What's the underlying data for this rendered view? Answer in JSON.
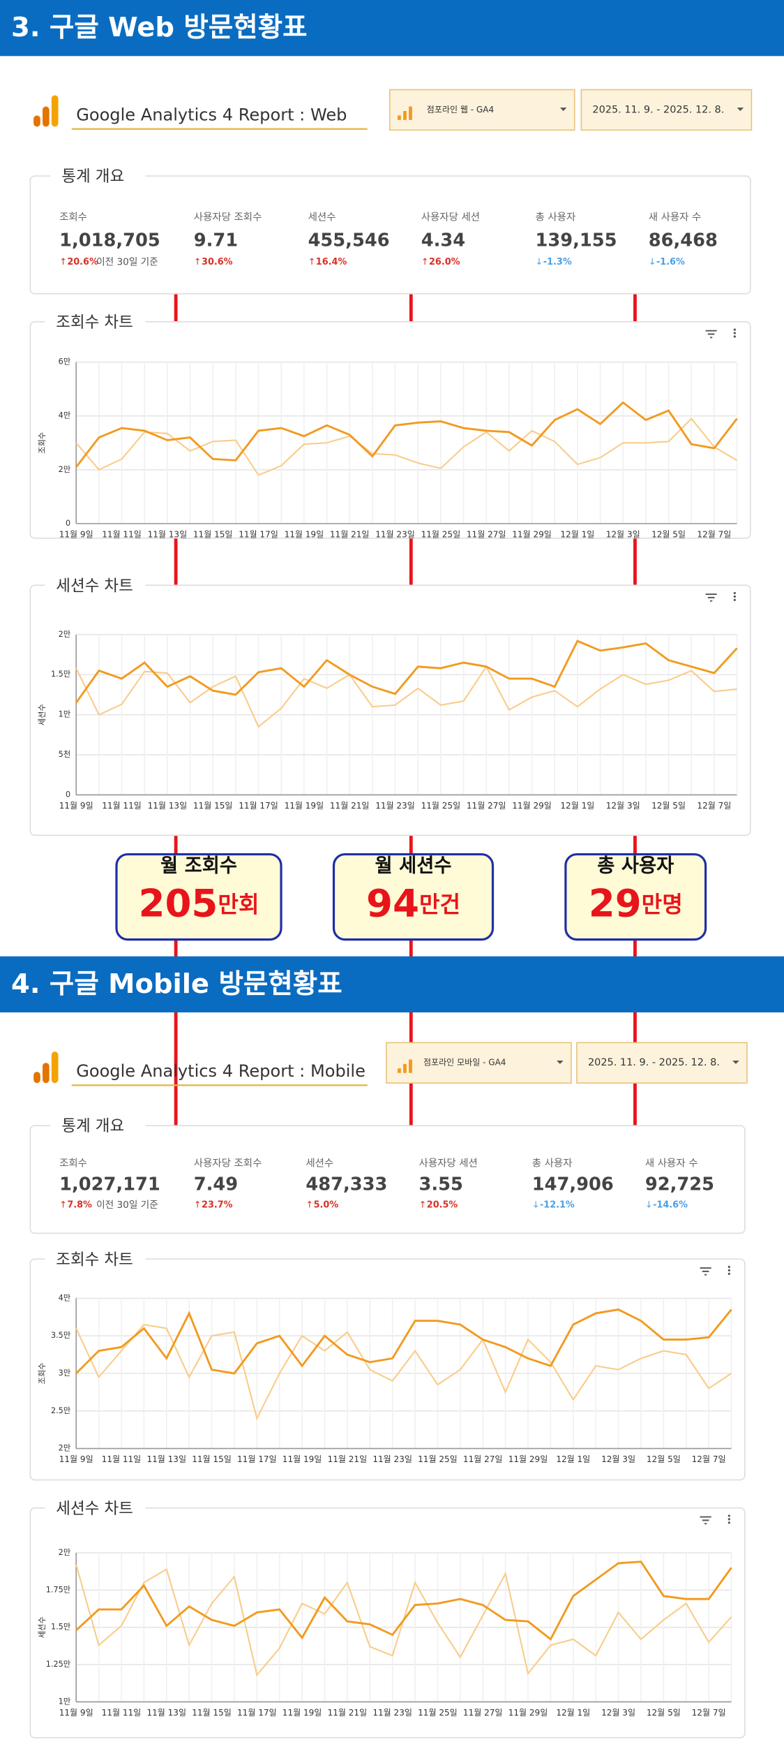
{
  "sections": [
    {
      "header": "3. 구글 Web 방문현황표",
      "ga_title": "Google Analytics 4 Report : Web",
      "property": "점포라인 웹 - GA4",
      "date_range": "2025. 11. 9. - 2025. 12. 8.",
      "overview_title": "통계 개요",
      "stats": [
        {
          "label": "조회수",
          "value": "1,018,705",
          "change": "20.6%",
          "direction": "up",
          "note": "이전 30일 기준"
        },
        {
          "label": "사용자당 조회수",
          "value": "9.71",
          "change": "30.6%",
          "direction": "up"
        },
        {
          "label": "세션수",
          "value": "455,546",
          "change": "16.4%",
          "direction": "up"
        },
        {
          "label": "사용자당 세션",
          "value": "4.34",
          "change": "26.0%",
          "direction": "up"
        },
        {
          "label": "총 사용자",
          "value": "139,155",
          "change": "-1.3%",
          "direction": "down"
        },
        {
          "label": "새 사용자 수",
          "value": "86,468",
          "change": "-1.6%",
          "direction": "down"
        }
      ]
    },
    {
      "header": "4. 구글 Mobile 방문현황표",
      "ga_title": "Google Analytics 4 Report : Mobile",
      "property": "점포라인 모바일 - GA4",
      "date_range": "2025. 11. 9. - 2025. 12. 8.",
      "overview_title": "통계 개요",
      "stats": [
        {
          "label": "조회수",
          "value": "1,027,171",
          "change": "7.8%",
          "direction": "up",
          "note": "이전 30일 기준"
        },
        {
          "label": "사용자당 조회수",
          "value": "7.49",
          "change": "23.7%",
          "direction": "up"
        },
        {
          "label": "세션수",
          "value": "487,333",
          "change": "5.0%",
          "direction": "up"
        },
        {
          "label": "사용자당 세션",
          "value": "3.55",
          "change": "20.5%",
          "direction": "up"
        },
        {
          "label": "총 사용자",
          "value": "147,906",
          "change": "-12.1%",
          "direction": "down"
        },
        {
          "label": "새 사용자 수",
          "value": "92,725",
          "change": "-14.6%",
          "direction": "down"
        }
      ]
    }
  ],
  "callouts": [
    {
      "title": "월 조회수",
      "number": "205",
      "unit": "만회"
    },
    {
      "title": "월 세션수",
      "number": "94",
      "unit": "만건"
    },
    {
      "title": "총 사용자",
      "number": "29",
      "unit": "만명"
    }
  ],
  "chart_data": [
    {
      "type": "line",
      "title": "조회수 차트",
      "y_label": "조회수",
      "grid": true,
      "categories": [
        "11월 9일",
        null,
        "11월 11일",
        null,
        "11월 13일",
        null,
        "11월 15일",
        null,
        "11월 17일",
        null,
        "11월 19일",
        null,
        "11월 21일",
        null,
        "11월 23일",
        null,
        "11월 25일",
        null,
        "11월 27일",
        null,
        "11월 29일",
        null,
        "12월 1일",
        null,
        "12월 3일",
        null,
        "12월 5일",
        null,
        "12월 7일",
        null
      ],
      "ylim": [
        0,
        60000
      ],
      "yticks": [
        0,
        {
          "value": 20000,
          "label": "2만"
        },
        {
          "value": 40000,
          "label": "4만"
        },
        {
          "value": 60000,
          "label": "6만"
        }
      ],
      "series": [
        {
          "color": "#f29a1f",
          "values": [
            21000,
            32000,
            35500,
            34500,
            31000,
            32000,
            24000,
            23500,
            34500,
            35500,
            32500,
            36500,
            33000,
            25000,
            36500,
            37500,
            38000,
            35500,
            34500,
            34000,
            29000,
            38500,
            42500,
            37000,
            45000,
            38500,
            42000,
            29500,
            28000,
            39000
          ]
        },
        {
          "color": "#f9cc8a",
          "values": [
            30000,
            20000,
            24000,
            34000,
            33500,
            27000,
            30500,
            31000,
            18000,
            21500,
            29500,
            30000,
            32500,
            26000,
            25500,
            22500,
            20500,
            28500,
            34000,
            27000,
            34500,
            30500,
            22000,
            24500,
            30000,
            30000,
            30500,
            39000,
            28500,
            23500
          ]
        }
      ]
    },
    {
      "type": "line",
      "title": "세션수 차트",
      "y_label": "세션수",
      "grid": true,
      "categories": [
        "11월 9일",
        null,
        "11월 11일",
        null,
        "11월 13일",
        null,
        "11월 15일",
        null,
        "11월 17일",
        null,
        "11월 19일",
        null,
        "11월 21일",
        null,
        "11월 23일",
        null,
        "11월 25일",
        null,
        "11월 27일",
        null,
        "11월 29일",
        null,
        "12월 1일",
        null,
        "12월 3일",
        null,
        "12월 5일",
        null,
        "12월 7일",
        null
      ],
      "ylim": [
        0,
        20000
      ],
      "yticks": [
        0,
        {
          "value": 5000,
          "label": "5천"
        },
        {
          "value": 10000,
          "label": "1만"
        },
        {
          "value": 15000,
          "label": "1.5만"
        },
        {
          "value": 20000,
          "label": "2만"
        }
      ],
      "series": [
        {
          "color": "#f29a1f",
          "values": [
            11500,
            15500,
            14500,
            16500,
            13500,
            14800,
            13000,
            12500,
            15300,
            15800,
            13500,
            16800,
            15000,
            13500,
            12600,
            16000,
            15800,
            16500,
            16000,
            14500,
            14500,
            13500,
            19200,
            18000,
            18400,
            18900,
            16800,
            16000,
            15200,
            18300
          ]
        },
        {
          "color": "#f9cc8a",
          "values": [
            15800,
            10000,
            11300,
            15400,
            15200,
            11500,
            13500,
            14800,
            8500,
            10800,
            14500,
            13300,
            15000,
            11000,
            11200,
            13300,
            11200,
            11700,
            16000,
            10600,
            12200,
            13000,
            11000,
            13200,
            15000,
            13800,
            14300,
            15500,
            12900,
            13200
          ]
        }
      ]
    },
    {
      "type": "line",
      "title": "조회수 차트",
      "y_label": "조회수",
      "grid": true,
      "categories": [
        "11월 9일",
        null,
        "11월 11일",
        null,
        "11월 13일",
        null,
        "11월 15일",
        null,
        "11월 17일",
        null,
        "11월 19일",
        null,
        "11월 21일",
        null,
        "11월 23일",
        null,
        "11월 25일",
        null,
        "11월 27일",
        null,
        "11월 29일",
        null,
        "12월 1일",
        null,
        "12월 3일",
        null,
        "12월 5일",
        null,
        "12월 7일",
        null
      ],
      "ylim": [
        20000,
        40000
      ],
      "yticks": [
        {
          "value": 20000,
          "label": "2만"
        },
        {
          "value": 25000,
          "label": "2.5만"
        },
        {
          "value": 30000,
          "label": "3만"
        },
        {
          "value": 35000,
          "label": "3.5만"
        },
        {
          "value": 40000,
          "label": "4만"
        }
      ],
      "series": [
        {
          "color": "#f29a1f",
          "values": [
            30000,
            33000,
            33500,
            36000,
            32000,
            38000,
            30500,
            30000,
            34000,
            35000,
            31000,
            35000,
            32500,
            31500,
            32000,
            37000,
            37000,
            36500,
            34500,
            33500,
            32000,
            31000,
            36500,
            38000,
            38500,
            37000,
            34500,
            34500,
            34800,
            38500
          ]
        },
        {
          "color": "#f9cc8a",
          "values": [
            36000,
            29500,
            33000,
            36500,
            36000,
            29500,
            35000,
            35500,
            24000,
            30000,
            35000,
            33000,
            35500,
            30500,
            29000,
            33000,
            28500,
            30500,
            34500,
            27500,
            34500,
            31500,
            26500,
            31000,
            30500,
            32000,
            33000,
            32500,
            28000,
            30000
          ]
        }
      ]
    },
    {
      "type": "line",
      "title": "세션수 차트",
      "y_label": "세션수",
      "grid": true,
      "categories": [
        "11월 9일",
        null,
        "11월 11일",
        null,
        "11월 13일",
        null,
        "11월 15일",
        null,
        "11월 17일",
        null,
        "11월 19일",
        null,
        "11월 21일",
        null,
        "11월 23일",
        null,
        "11월 25일",
        null,
        "11월 27일",
        null,
        "11월 29일",
        null,
        "12월 1일",
        null,
        "12월 3일",
        null,
        "12월 5일",
        null,
        "12월 7일",
        null
      ],
      "ylim": [
        10000,
        20000
      ],
      "yticks": [
        {
          "value": 10000,
          "label": "1만"
        },
        {
          "value": 12500,
          "label": "1.25만"
        },
        {
          "value": 15000,
          "label": "1.5만"
        },
        {
          "value": 17500,
          "label": "1.75만"
        },
        {
          "value": 20000,
          "label": "2만"
        }
      ],
      "series": [
        {
          "color": "#f29a1f",
          "values": [
            14800,
            16200,
            16200,
            17800,
            15100,
            16400,
            15500,
            15100,
            16000,
            16200,
            14300,
            17000,
            15400,
            15200,
            14500,
            16500,
            16600,
            16900,
            16500,
            15500,
            15400,
            14200,
            17100,
            18200,
            19300,
            19400,
            17100,
            16900,
            16900,
            19000
          ]
        },
        {
          "color": "#f9cc8a",
          "values": [
            19200,
            13800,
            15100,
            18000,
            18900,
            13800,
            16600,
            18400,
            11800,
            13600,
            16600,
            15900,
            18000,
            13700,
            13100,
            18000,
            15300,
            13000,
            15800,
            18600,
            11900,
            13800,
            14200,
            13100,
            16000,
            14200,
            15500,
            16600,
            14000,
            15700
          ]
        }
      ]
    }
  ]
}
